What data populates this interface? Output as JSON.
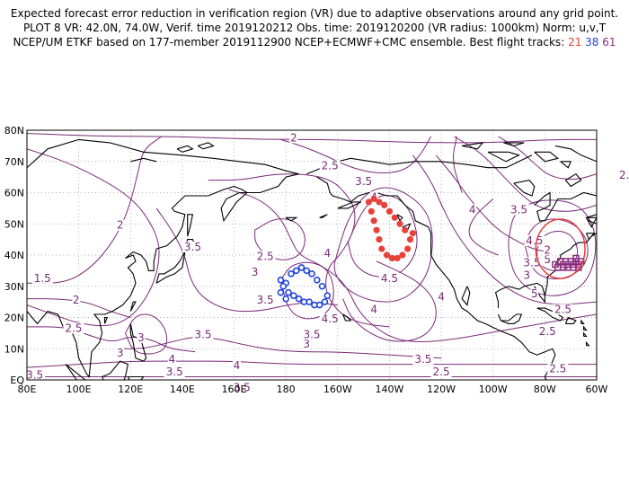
{
  "title": {
    "line1": "Expected forecast error reduction in verification region (VR) due to adaptive observations around any grid point.",
    "line2": "PLOT 8 VR: 42.0N, 74.0W, Verif. time 2019120212 Obs. time: 2019120200 (VR radius: 1000km) Norm: u,v,T",
    "line3_prefix": "NCEP/UM ETKF based on 177-member 2019112900 NCEP+ECMWF+CMC ensemble. Best flight tracks:",
    "track1": "21",
    "track2": "38",
    "track3": "61"
  },
  "map": {
    "lat_labels": [
      "80N",
      "70N",
      "60N",
      "50N",
      "40N",
      "30N",
      "20N",
      "10N",
      "EQ"
    ],
    "lon_labels": [
      "80E",
      "100E",
      "120E",
      "140E",
      "160E",
      "180",
      "160W",
      "140W",
      "120W",
      "100W",
      "80W",
      "60W"
    ],
    "colors": {
      "contour": "#7a2a7a",
      "track21": "#e8403a",
      "track38": "#2244dd",
      "track61": "#8a2a7e",
      "coast": "#000000",
      "vr_circle": "#e8403a"
    },
    "contour_labels": [
      {
        "text": "2",
        "lon": 183,
        "lat": 77
      },
      {
        "text": "2.5",
        "lon": 197,
        "lat": 68
      },
      {
        "text": "3.5",
        "lon": 210,
        "lat": 63
      },
      {
        "text": "4",
        "lon": 214,
        "lat": 58
      },
      {
        "text": "2.5",
        "lon": 312,
        "lat": 65
      },
      {
        "text": "3",
        "lon": 318,
        "lat": 60
      },
      {
        "text": "4",
        "lon": 252,
        "lat": 54
      },
      {
        "text": "3.5",
        "lon": 270,
        "lat": 54
      },
      {
        "text": "2",
        "lon": 116,
        "lat": 49
      },
      {
        "text": "3.5",
        "lon": 144,
        "lat": 42
      },
      {
        "text": "2.5",
        "lon": 172,
        "lat": 39
      },
      {
        "text": "3",
        "lon": 168,
        "lat": 34
      },
      {
        "text": "4",
        "lon": 196,
        "lat": 40
      },
      {
        "text": "4.5",
        "lon": 220,
        "lat": 32
      },
      {
        "text": "3.5",
        "lon": 275,
        "lat": 37
      },
      {
        "text": "3",
        "lon": 273,
        "lat": 33
      },
      {
        "text": "4.5",
        "lon": 276,
        "lat": 44
      },
      {
        "text": "5",
        "lon": 281,
        "lat": 38
      },
      {
        "text": "5",
        "lon": 276,
        "lat": 27
      },
      {
        "text": "2",
        "lon": 281,
        "lat": 41
      },
      {
        "text": "1.5",
        "lon": 86,
        "lat": 32
      },
      {
        "text": "2",
        "lon": 99,
        "lat": 25
      },
      {
        "text": "2.5",
        "lon": 98,
        "lat": 16
      },
      {
        "text": "3.5",
        "lon": 172,
        "lat": 25
      },
      {
        "text": "4",
        "lon": 214,
        "lat": 22
      },
      {
        "text": "4.5",
        "lon": 197,
        "lat": 19
      },
      {
        "text": "3",
        "lon": 116,
        "lat": 8
      },
      {
        "text": "4",
        "lon": 136,
        "lat": 6
      },
      {
        "text": "3.5",
        "lon": 148,
        "lat": 14
      },
      {
        "text": "3.5",
        "lon": 137,
        "lat": 2
      },
      {
        "text": "4",
        "lon": 161,
        "lat": 4
      },
      {
        "text": "3",
        "lon": 124,
        "lat": 13
      },
      {
        "text": "3.5",
        "lon": 163,
        "lat": -3
      },
      {
        "text": "3",
        "lon": 188,
        "lat": 11
      },
      {
        "text": "3.5",
        "lon": 190,
        "lat": 14
      },
      {
        "text": "3.5",
        "lon": 233,
        "lat": 6
      },
      {
        "text": "4",
        "lon": 240,
        "lat": 26
      },
      {
        "text": "2.5",
        "lon": 240,
        "lat": 2
      },
      {
        "text": "2.5",
        "lon": 281,
        "lat": 15
      },
      {
        "text": "2.5",
        "lon": 287,
        "lat": 22
      },
      {
        "text": "2.5",
        "lon": 285,
        "lat": 3
      },
      {
        "text": "3.5",
        "lon": 83,
        "lat": 1
      }
    ],
    "track21": [
      [
        212,
        57
      ],
      [
        213,
        54
      ],
      [
        214,
        51
      ],
      [
        215,
        48
      ],
      [
        216,
        45
      ],
      [
        217,
        42
      ],
      [
        219,
        40
      ],
      [
        221,
        39
      ],
      [
        223,
        39
      ],
      [
        225,
        40
      ],
      [
        227,
        42
      ],
      [
        228,
        45
      ],
      [
        229,
        47
      ],
      [
        226,
        48
      ],
      [
        224,
        50
      ],
      [
        222,
        52
      ],
      [
        220,
        54
      ],
      [
        218,
        56
      ],
      [
        216,
        57
      ],
      [
        214,
        58
      ]
    ],
    "track38": [
      [
        180,
        31
      ],
      [
        182,
        34
      ],
      [
        184,
        35
      ],
      [
        186,
        36
      ],
      [
        188,
        35
      ],
      [
        190,
        34
      ],
      [
        192,
        32
      ],
      [
        194,
        30
      ],
      [
        196,
        27
      ],
      [
        195,
        25
      ],
      [
        193,
        24
      ],
      [
        191,
        24
      ],
      [
        189,
        25
      ],
      [
        187,
        25
      ],
      [
        185,
        26
      ],
      [
        183,
        27
      ],
      [
        181,
        28
      ],
      [
        179,
        30
      ],
      [
        178,
        32
      ],
      [
        178,
        28
      ],
      [
        180,
        26
      ]
    ],
    "track61": [
      [
        287,
        37
      ],
      [
        289,
        37
      ],
      [
        291,
        37
      ],
      [
        293,
        37
      ],
      [
        294,
        38
      ],
      [
        292,
        38
      ],
      [
        290,
        38
      ],
      [
        288,
        38
      ],
      [
        286,
        38
      ],
      [
        285,
        36
      ],
      [
        287,
        36
      ],
      [
        289,
        36
      ],
      [
        291,
        36
      ],
      [
        293,
        36
      ],
      [
        284,
        37
      ],
      [
        292,
        39
      ]
    ],
    "vr_center": {
      "lon": 286,
      "lat": 42
    },
    "vr_radius_deg": 9.5
  }
}
